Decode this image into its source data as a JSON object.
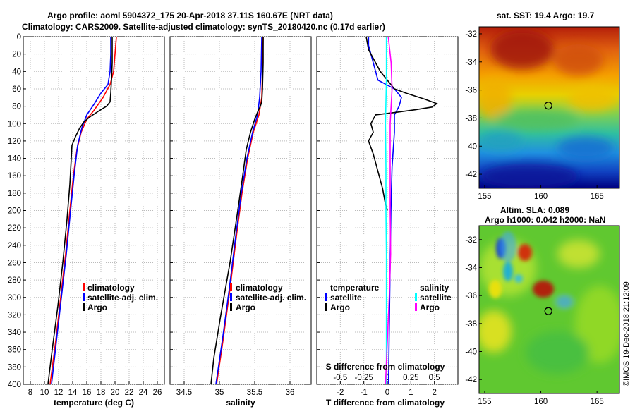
{
  "header": {
    "line1": "Argo profile: aoml 5904372_175 20-Apr-2018 37.11S 160.67E (NRT data)",
    "line2": "Climatology: CARS2009. Satellite-adjusted climatology: synTS_20180420.nc (0.17d earlier)"
  },
  "credit": "©IMOS 19-Dec-2018 21:12:09",
  "colors": {
    "climatology": "#ff0000",
    "satellite": "#0000ff",
    "argo": "#000000",
    "sal_satellite": "#00ffff",
    "sal_argo": "#ff00ff"
  },
  "chart_data": [
    {
      "type": "line",
      "name": "temperature-profile",
      "xlabel": "temperature (deg C)",
      "ylabel": "",
      "xlim": [
        7,
        27
      ],
      "ylim": [
        400,
        0
      ],
      "xticks": [
        8,
        10,
        12,
        14,
        16,
        18,
        20,
        22,
        24,
        26
      ],
      "yticks": [
        0,
        20,
        40,
        60,
        80,
        100,
        120,
        140,
        160,
        180,
        200,
        220,
        240,
        260,
        280,
        300,
        320,
        340,
        360,
        380,
        400
      ],
      "grid": true,
      "legend": [
        "climatology",
        "satellite-adj. clim.",
        "Argo"
      ],
      "series": [
        {
          "name": "climatology",
          "color": "#ff0000",
          "points": [
            [
              20.2,
              0
            ],
            [
              20.0,
              20
            ],
            [
              19.8,
              40
            ],
            [
              19.3,
              55
            ],
            [
              18.3,
              70
            ],
            [
              17.0,
              85
            ],
            [
              16.0,
              95
            ],
            [
              15.2,
              110
            ],
            [
              14.6,
              130
            ],
            [
              14.1,
              160
            ],
            [
              13.6,
              200
            ],
            [
              13.0,
              250
            ],
            [
              12.3,
              300
            ],
            [
              11.6,
              350
            ],
            [
              10.8,
              400
            ]
          ]
        },
        {
          "name": "satellite-adj. clim.",
          "color": "#0000ff",
          "points": [
            [
              19.4,
              0
            ],
            [
              19.4,
              20
            ],
            [
              19.3,
              40
            ],
            [
              19.0,
              55
            ],
            [
              18.0,
              65
            ],
            [
              17.0,
              78
            ],
            [
              16.0,
              90
            ],
            [
              15.3,
              105
            ],
            [
              14.7,
              125
            ],
            [
              14.2,
              160
            ],
            [
              13.7,
              200
            ],
            [
              13.1,
              250
            ],
            [
              12.4,
              300
            ],
            [
              11.7,
              350
            ],
            [
              11.0,
              400
            ]
          ]
        },
        {
          "name": "Argo",
          "color": "#000000",
          "points": [
            [
              19.6,
              0
            ],
            [
              19.6,
              30
            ],
            [
              19.5,
              50
            ],
            [
              19.4,
              65
            ],
            [
              19.3,
              75
            ],
            [
              18.8,
              80
            ],
            [
              17.8,
              85
            ],
            [
              16.5,
              92
            ],
            [
              15.6,
              98
            ],
            [
              15.0,
              105
            ],
            [
              14.4,
              115
            ],
            [
              13.9,
              125
            ],
            [
              13.8,
              140
            ],
            [
              13.6,
              170
            ],
            [
              13.2,
              210
            ],
            [
              12.6,
              260
            ],
            [
              11.9,
              310
            ],
            [
              11.1,
              360
            ],
            [
              10.5,
              400
            ]
          ]
        }
      ]
    },
    {
      "type": "line",
      "name": "salinity-profile",
      "xlabel": "salinity",
      "ylabel": "",
      "xlim": [
        34.3,
        36.3
      ],
      "ylim": [
        400,
        0
      ],
      "xticks": [
        34.5,
        35,
        35.5,
        36
      ],
      "grid": true,
      "legend": [
        "climatology",
        "satellite-adj. clim.",
        "Argo"
      ],
      "series": [
        {
          "name": "climatology",
          "color": "#ff0000",
          "points": [
            [
              35.62,
              0
            ],
            [
              35.61,
              40
            ],
            [
              35.6,
              70
            ],
            [
              35.56,
              90
            ],
            [
              35.48,
              110
            ],
            [
              35.4,
              140
            ],
            [
              35.32,
              180
            ],
            [
              35.24,
              230
            ],
            [
              35.15,
              290
            ],
            [
              35.05,
              350
            ],
            [
              34.96,
              400
            ]
          ]
        },
        {
          "name": "satellite-adj. clim.",
          "color": "#0000ff",
          "points": [
            [
              35.6,
              0
            ],
            [
              35.59,
              40
            ],
            [
              35.57,
              70
            ],
            [
              35.54,
              90
            ],
            [
              35.47,
              110
            ],
            [
              35.39,
              140
            ],
            [
              35.31,
              180
            ],
            [
              35.23,
              230
            ],
            [
              35.14,
              290
            ],
            [
              35.04,
              350
            ],
            [
              34.95,
              400
            ]
          ]
        },
        {
          "name": "Argo",
          "color": "#000000",
          "points": [
            [
              35.62,
              0
            ],
            [
              35.62,
              30
            ],
            [
              35.61,
              60
            ],
            [
              35.6,
              75
            ],
            [
              35.58,
              80
            ],
            [
              35.55,
              85
            ],
            [
              35.5,
              95
            ],
            [
              35.44,
              110
            ],
            [
              35.38,
              130
            ],
            [
              35.33,
              160
            ],
            [
              35.26,
              200
            ],
            [
              35.15,
              260
            ],
            [
              35.02,
              320
            ],
            [
              34.92,
              370
            ],
            [
              34.88,
              400
            ]
          ]
        }
      ]
    },
    {
      "type": "line",
      "name": "difference-profile",
      "xlabel": "T difference from climatology",
      "x2label": "S difference from climatology",
      "xlim": [
        -3,
        3
      ],
      "ylim": [
        400,
        0
      ],
      "xticks": [
        -2,
        -1,
        0,
        1,
        2
      ],
      "x2ticks": [
        -0.5,
        -0.25,
        0,
        0.25,
        0.5
      ],
      "x2ticklabels": [
        "-0.5",
        "-0.25",
        "0",
        "0.25",
        "0.5"
      ],
      "grid": true,
      "legend_left_title": "temperature",
      "legend_right_title": "salinity",
      "legend_left": [
        "satellite",
        "Argo"
      ],
      "legend_right": [
        "satellite",
        "Argo"
      ],
      "series": [
        {
          "name": "T satellite",
          "color": "#0000ff",
          "points": [
            [
              -0.8,
              0
            ],
            [
              -0.8,
              10
            ],
            [
              -0.6,
              30
            ],
            [
              -0.4,
              50
            ],
            [
              0.3,
              60
            ],
            [
              0.6,
              70
            ],
            [
              0.5,
              80
            ],
            [
              0.3,
              90
            ],
            [
              0.3,
              110
            ],
            [
              0.2,
              150
            ],
            [
              0.15,
              200
            ],
            [
              0.1,
              300
            ],
            [
              0.05,
              400
            ]
          ]
        },
        {
          "name": "T Argo",
          "color": "#000000",
          "points": [
            [
              -0.9,
              0
            ],
            [
              -0.8,
              15
            ],
            [
              -0.6,
              25
            ],
            [
              -0.3,
              40
            ],
            [
              0.3,
              60
            ],
            [
              0.8,
              65
            ],
            [
              1.6,
              72
            ],
            [
              2.1,
              77
            ],
            [
              1.9,
              81
            ],
            [
              1.2,
              84
            ],
            [
              0.4,
              87
            ],
            [
              -0.5,
              90
            ],
            [
              -0.7,
              100
            ],
            [
              -0.6,
              110
            ],
            [
              -0.8,
              120
            ],
            [
              -0.6,
              135
            ],
            [
              -0.4,
              155
            ],
            [
              -0.2,
              175
            ],
            [
              -0.1,
              190
            ],
            [
              0.0,
              200
            ]
          ]
        },
        {
          "name": "S satellite",
          "color": "#00ffff",
          "points": [
            [
              -0.01,
              0
            ],
            [
              -0.01,
              50
            ],
            [
              -0.02,
              100
            ],
            [
              -0.015,
              150
            ],
            [
              -0.015,
              200
            ],
            [
              -0.01,
              250
            ],
            [
              -0.01,
              300
            ],
            [
              -0.01,
              350
            ],
            [
              -0.01,
              400
            ]
          ]
        },
        {
          "name": "S Argo",
          "color": "#ff00ff",
          "points": [
            [
              0.01,
              0
            ],
            [
              0.02,
              10
            ],
            [
              0.04,
              30
            ],
            [
              0.05,
              60
            ],
            [
              0.04,
              80
            ],
            [
              0.03,
              100
            ],
            [
              0.03,
              150
            ],
            [
              0.03,
              200
            ],
            [
              0.035,
              250
            ],
            [
              0.02,
              300
            ],
            [
              0.0,
              350
            ],
            [
              -0.02,
              400
            ]
          ]
        }
      ]
    },
    {
      "type": "heatmap",
      "name": "sst-map",
      "title": "sat. SST: 19.4 Argo: 19.7",
      "xlim": [
        154.5,
        167
      ],
      "ylim": [
        -43,
        -31.5
      ],
      "xticks": [
        155,
        160,
        165
      ],
      "yticks": [
        -32,
        -34,
        -36,
        -38,
        -40,
        -42
      ],
      "marker": [
        160.67,
        -37.11
      ]
    },
    {
      "type": "heatmap",
      "name": "sla-map",
      "title": "Altim. SLA: 0.089",
      "subtitle": "Argo h1000: 0.042 h2000: NaN",
      "xlim": [
        154.5,
        167
      ],
      "ylim": [
        -43,
        -31
      ],
      "xticks": [
        155,
        160,
        165
      ],
      "yticks": [
        -32,
        -34,
        -36,
        -38,
        -40,
        -42
      ],
      "marker": [
        160.67,
        -37.11
      ]
    }
  ],
  "legend_profile": {
    "climatology": "climatology",
    "satellite": "satellite-adj. clim.",
    "argo": "Argo"
  },
  "legend_diff": {
    "temperature": "temperature",
    "salinity": "salinity",
    "satellite": "satellite",
    "argo": "Argo"
  }
}
